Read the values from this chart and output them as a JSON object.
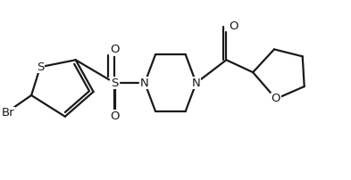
{
  "bg_color": "#ffffff",
  "line_color": "#1a1a1a",
  "line_width": 1.6,
  "font_size": 9.5,
  "figsize": [
    3.93,
    2.02
  ],
  "dpi": 100,
  "xlim": [
    0,
    9.8
  ],
  "ylim": [
    0.2,
    5.2
  ]
}
